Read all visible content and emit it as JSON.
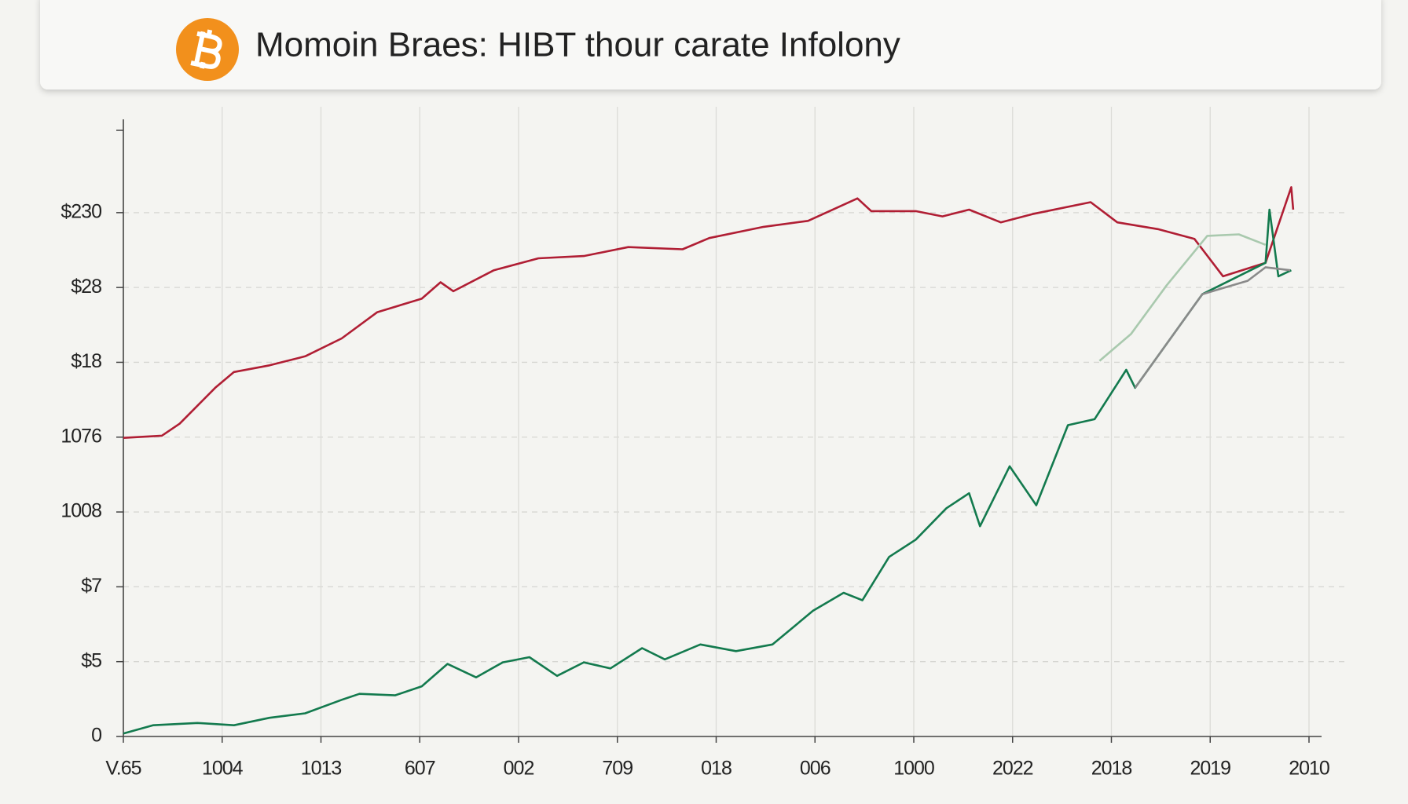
{
  "chart_data": {
    "type": "line",
    "title": "Momoin Braes: HIBT thour carate Infolony",
    "grid": true,
    "xlim": [
      0,
      12
    ],
    "xticks": [
      {
        "value": 0,
        "label": "V.65"
      },
      {
        "value": 1,
        "label": "1004"
      },
      {
        "value": 2,
        "label": "1013"
      },
      {
        "value": 3,
        "label": "607"
      },
      {
        "value": 4,
        "label": "002"
      },
      {
        "value": 5,
        "label": "709"
      },
      {
        "value": 6,
        "label": "018"
      },
      {
        "value": 7,
        "label": "006"
      },
      {
        "value": 8,
        "label": "1000"
      },
      {
        "value": 9,
        "label": "2022"
      },
      {
        "value": 10,
        "label": "2018"
      },
      {
        "value": 11,
        "label": "2019"
      },
      {
        "value": 12,
        "label": "2010"
      }
    ],
    "ylim": [
      0,
      8.1
    ],
    "yticks": [
      0,
      {
        "value": 1,
        "label": "$5"
      },
      {
        "value": 2,
        "label": "$7"
      },
      {
        "value": 3,
        "label": "1008"
      },
      {
        "value": 4,
        "label": "1076"
      },
      {
        "value": 5,
        "label": "$18"
      },
      {
        "value": 6,
        "label": "$28"
      },
      {
        "value": 7,
        "label": "$230"
      }
    ],
    "series": [
      {
        "color": "#b01e34",
        "x": [
          0,
          0.39,
          0.57,
          0.93,
          1.12,
          1.48,
          1.84,
          2.21,
          2.57,
          3.02,
          3.21,
          3.34,
          3.75,
          4.2,
          4.66,
          5.11,
          5.66,
          5.93,
          6.48,
          6.93,
          7.43,
          7.57,
          8.02,
          8.29,
          8.56,
          8.88,
          9.2,
          9.79,
          10.06,
          10.47,
          10.84,
          11.13,
          11.56,
          11.82,
          11.84
        ],
        "values": [
          3.99,
          4.02,
          4.18,
          4.66,
          4.87,
          4.96,
          5.08,
          5.32,
          5.67,
          5.85,
          6.07,
          5.95,
          6.23,
          6.39,
          6.42,
          6.54,
          6.51,
          6.66,
          6.81,
          6.89,
          7.19,
          7.02,
          7.02,
          6.95,
          7.04,
          6.87,
          6.98,
          7.14,
          6.87,
          6.78,
          6.65,
          6.15,
          6.33,
          7.34,
          7.04
        ]
      },
      {
        "color": "#137a4e",
        "x": [
          0,
          0.3,
          0.75,
          1.12,
          1.48,
          1.84,
          2.21,
          2.39,
          2.75,
          3.02,
          3.28,
          3.57,
          3.84,
          4.11,
          4.39,
          4.66,
          4.93,
          5.25,
          5.48,
          5.84,
          6.2,
          6.57,
          6.98,
          7.29,
          7.48,
          7.75,
          8.02,
          8.33,
          8.56,
          8.67,
          8.97,
          9.24,
          9.56,
          9.83,
          10.15,
          10.24,
          10.92,
          11.56,
          11.6,
          11.69,
          11.82
        ],
        "values": [
          0.04,
          0.15,
          0.18,
          0.15,
          0.25,
          0.31,
          0.49,
          0.57,
          0.55,
          0.67,
          0.97,
          0.79,
          0.99,
          1.06,
          0.81,
          0.99,
          0.91,
          1.18,
          1.03,
          1.23,
          1.14,
          1.23,
          1.68,
          1.92,
          1.82,
          2.4,
          2.63,
          3.05,
          3.25,
          2.81,
          3.61,
          3.09,
          4.16,
          4.24,
          4.9,
          4.66,
          5.91,
          6.33,
          7.04,
          6.15,
          6.23
        ]
      },
      {
        "color": "#a9c9ae",
        "x": [
          9.88,
          10.2,
          10.56,
          10.97,
          11.29,
          11.56
        ],
        "values": [
          5.02,
          5.38,
          6.03,
          6.69,
          6.71,
          6.57
        ]
      },
      {
        "color": "#8a8a8a",
        "x": [
          10.24,
          10.92,
          11.15,
          11.38,
          11.56,
          11.81
        ],
        "values": [
          4.66,
          5.91,
          6.0,
          6.09,
          6.27,
          6.23
        ]
      }
    ]
  }
}
